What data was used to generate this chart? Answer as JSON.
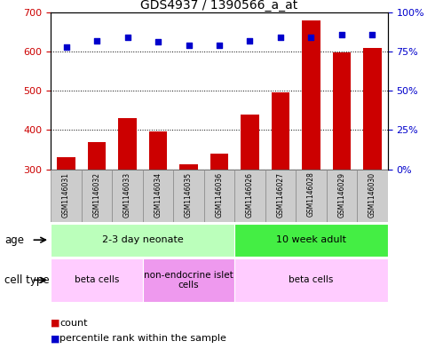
{
  "title": "GDS4937 / 1390566_a_at",
  "samples": [
    "GSM1146031",
    "GSM1146032",
    "GSM1146033",
    "GSM1146034",
    "GSM1146035",
    "GSM1146036",
    "GSM1146026",
    "GSM1146027",
    "GSM1146028",
    "GSM1146029",
    "GSM1146030"
  ],
  "counts": [
    330,
    370,
    430,
    397,
    313,
    340,
    440,
    497,
    680,
    598,
    610
  ],
  "percentile_ranks": [
    78,
    82,
    84,
    81,
    79,
    79,
    82,
    84,
    84,
    86,
    86
  ],
  "ylim_left": [
    300,
    700
  ],
  "ylim_right": [
    0,
    100
  ],
  "yticks_left": [
    300,
    400,
    500,
    600,
    700
  ],
  "yticks_right": [
    0,
    25,
    50,
    75,
    100
  ],
  "bar_color": "#cc0000",
  "dot_color": "#0000cc",
  "age_groups": [
    {
      "label": "2-3 day neonate",
      "start": 0,
      "end": 6,
      "color": "#bbffbb"
    },
    {
      "label": "10 week adult",
      "start": 6,
      "end": 11,
      "color": "#44ee44"
    }
  ],
  "cell_type_groups": [
    {
      "label": "beta cells",
      "start": 0,
      "end": 3,
      "color": "#ffccff"
    },
    {
      "label": "non-endocrine islet\ncells",
      "start": 3,
      "end": 6,
      "color": "#ee99ee"
    },
    {
      "label": "beta cells",
      "start": 6,
      "end": 11,
      "color": "#ffccff"
    }
  ],
  "legend_items": [
    {
      "label": "count",
      "color": "#cc0000"
    },
    {
      "label": "percentile rank within the sample",
      "color": "#0000cc"
    }
  ],
  "tick_label_color_left": "#cc0000",
  "tick_label_color_right": "#0000cc",
  "background_color": "#ffffff",
  "plot_bg_color": "#ffffff",
  "grid_color": "#000000",
  "age_row_label": "age",
  "cell_type_row_label": "cell type",
  "label_area_color": "#cccccc"
}
